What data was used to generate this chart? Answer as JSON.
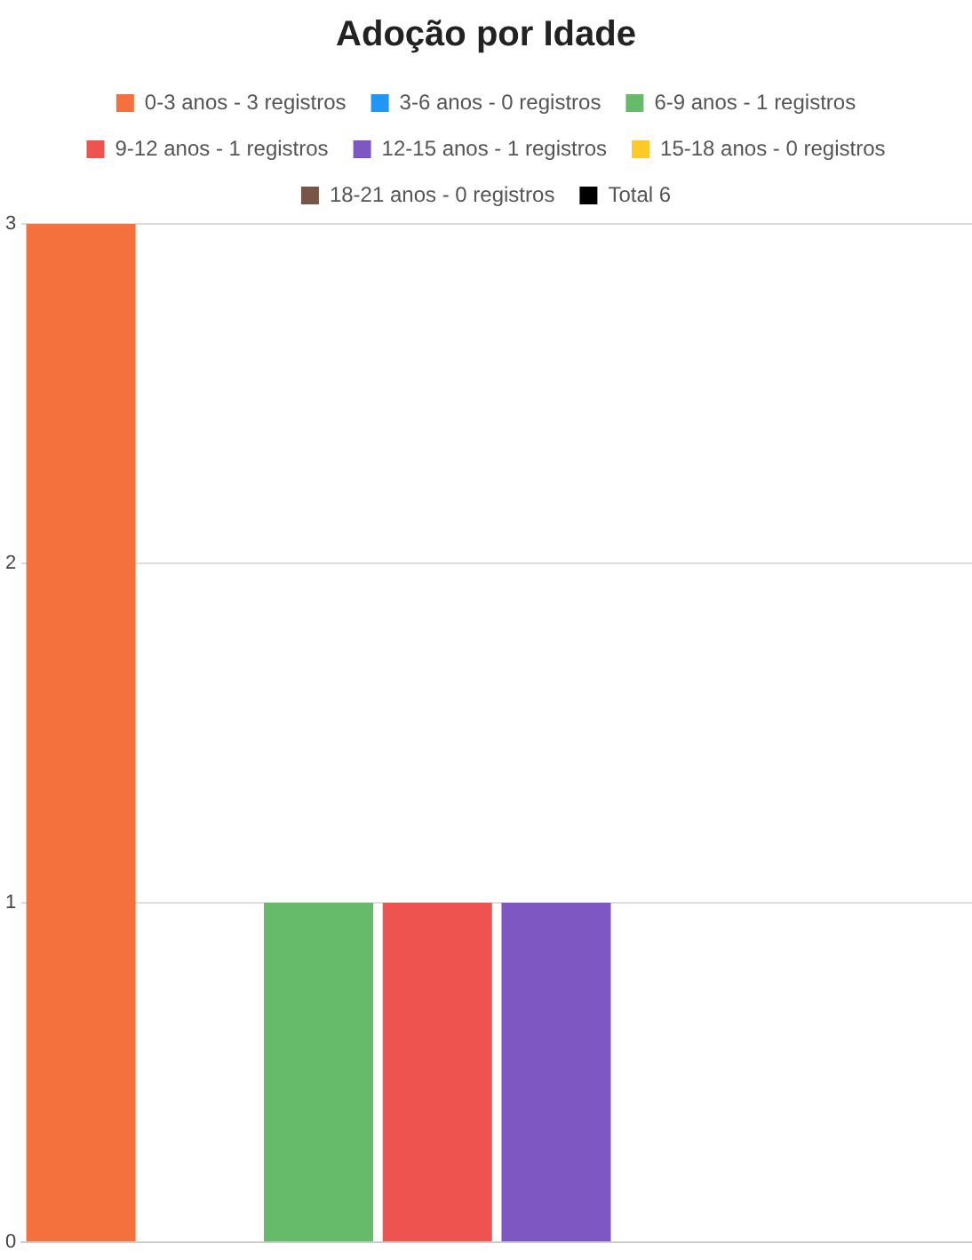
{
  "chart_data": {
    "type": "bar",
    "title": "Adoção por Idade",
    "categories": [
      null
    ],
    "series": [
      {
        "name": "0-3 anos - 3 registros",
        "color": "#f4703c",
        "values": [
          3
        ]
      },
      {
        "name": "3-6 anos - 0 registros",
        "color": "#2196f3",
        "values": [
          0
        ]
      },
      {
        "name": "6-9 anos - 1 registros",
        "color": "#66bb6a",
        "values": [
          1
        ]
      },
      {
        "name": "9-12 anos - 1 registros",
        "color": "#ef5350",
        "values": [
          1
        ]
      },
      {
        "name": "12-15 anos - 1 registros",
        "color": "#7e57c2",
        "values": [
          1
        ]
      },
      {
        "name": "15-18 anos - 0 registros",
        "color": "#ffca28",
        "values": [
          0
        ]
      },
      {
        "name": "18-21 anos - 0 registros",
        "color": "#795548",
        "values": [
          0
        ]
      },
      {
        "name": "Total 6",
        "color": "#000000",
        "values": [
          0
        ]
      }
    ],
    "ylim": [
      0,
      3
    ],
    "yticks": [
      0,
      1,
      2,
      3
    ],
    "grid": "y",
    "legend": "top"
  }
}
